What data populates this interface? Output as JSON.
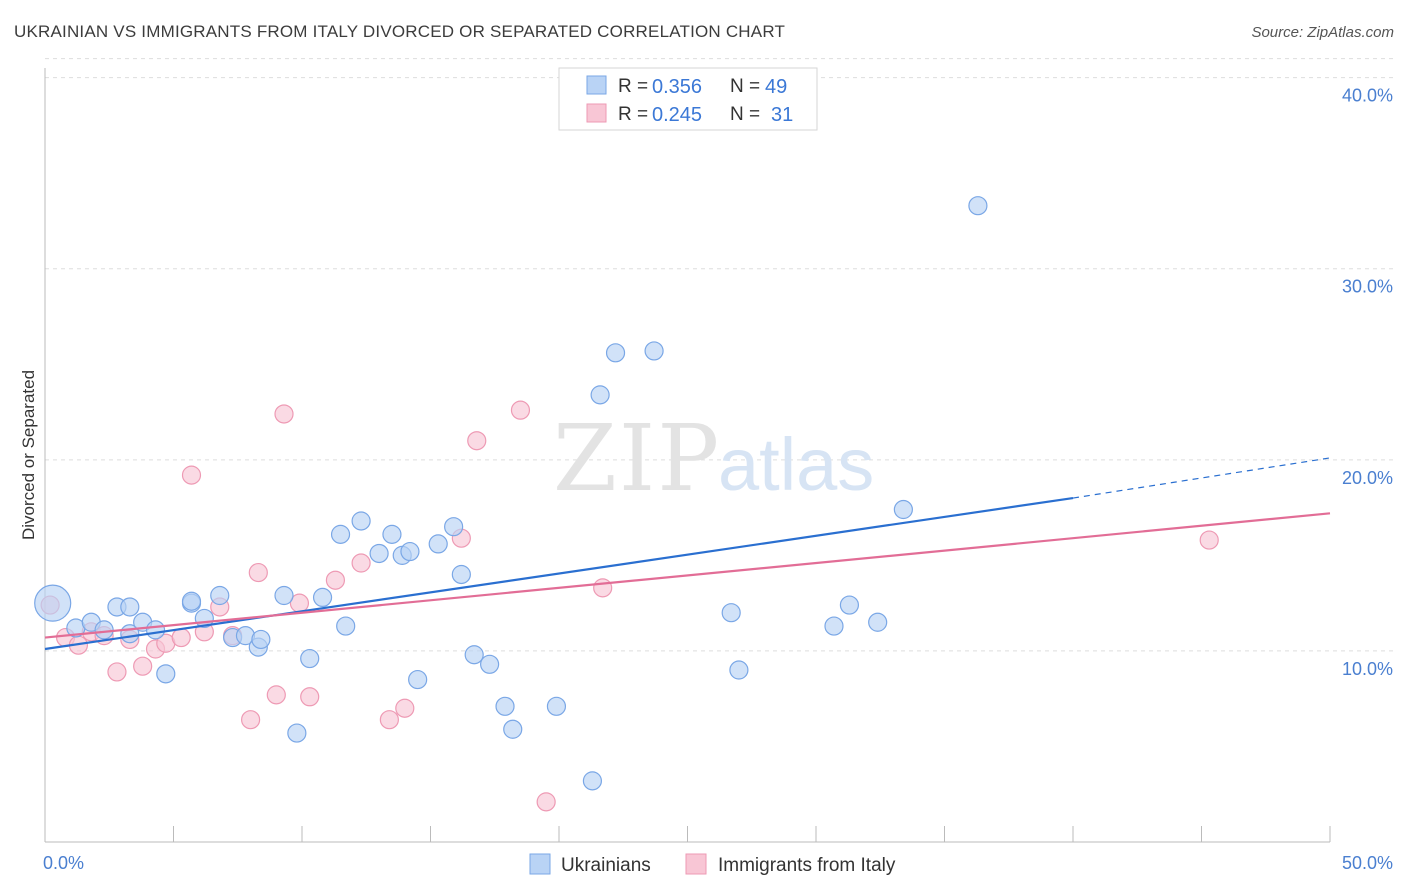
{
  "title": "UKRAINIAN VS IMMIGRANTS FROM ITALY DIVORCED OR SEPARATED CORRELATION CHART",
  "source": "Source: ZipAtlas.com",
  "watermark": {
    "zip": "ZIP",
    "atlas": "atlas"
  },
  "colors": {
    "blue_fill": "#b9d3f5",
    "blue_stroke": "#7aa7e6",
    "blue_line": "#2a6fd0",
    "pink_fill": "#f8c6d5",
    "pink_stroke": "#ee9ab4",
    "pink_line": "#e26d96",
    "tick_text": "#4a7fd0",
    "grid": "#dddddd"
  },
  "legend": {
    "rows": [
      {
        "r_label": "R = ",
        "r_value": "0.356",
        "n_label": "N = ",
        "n_value": "49"
      },
      {
        "r_label": "R = ",
        "r_value": "0.245",
        "n_label": "N = ",
        "n_value": "31"
      }
    ]
  },
  "bottom_legend": [
    "Ukrainians",
    "Immigrants from Italy"
  ],
  "chart_data": {
    "type": "scatter",
    "title": "UKRAINIAN VS IMMIGRANTS FROM ITALY DIVORCED OR SEPARATED CORRELATION CHART",
    "xlabel": "",
    "ylabel": "Divorced or Separated",
    "xlim": [
      0,
      50
    ],
    "ylim": [
      0,
      41.5
    ],
    "x_tick_labels": [
      "0.0%",
      "50.0%"
    ],
    "y_ticks": [
      10,
      20,
      30,
      40
    ],
    "y_tick_labels": [
      "10.0%",
      "20.0%",
      "30.0%",
      "40.0%"
    ],
    "grid": true,
    "legend_position": "top-center",
    "series": [
      {
        "name": "Ukrainians",
        "r": 0.356,
        "n": 49,
        "trend": {
          "x0": 0,
          "y0": 10.1,
          "x1": 40,
          "y1": 18.0,
          "dashed_to_x": 50,
          "dashed_to_y": 20.1
        },
        "points": [
          [
            0.3,
            12.5
          ],
          [
            1.2,
            11.2
          ],
          [
            1.8,
            11.5
          ],
          [
            2.3,
            11.1
          ],
          [
            2.8,
            12.3
          ],
          [
            3.3,
            12.3
          ],
          [
            3.3,
            10.9
          ],
          [
            3.8,
            11.5
          ],
          [
            4.3,
            11.1
          ],
          [
            4.7,
            8.8
          ],
          [
            5.7,
            12.5
          ],
          [
            5.7,
            12.6
          ],
          [
            6.2,
            11.7
          ],
          [
            6.8,
            12.9
          ],
          [
            7.3,
            10.7
          ],
          [
            7.8,
            10.8
          ],
          [
            8.3,
            10.2
          ],
          [
            8.4,
            10.6
          ],
          [
            9.3,
            12.9
          ],
          [
            9.8,
            5.7
          ],
          [
            10.3,
            9.6
          ],
          [
            10.8,
            12.8
          ],
          [
            11.5,
            16.1
          ],
          [
            11.7,
            11.3
          ],
          [
            12.3,
            16.8
          ],
          [
            13.0,
            15.1
          ],
          [
            13.5,
            16.1
          ],
          [
            13.9,
            15.0
          ],
          [
            14.2,
            15.2
          ],
          [
            14.5,
            8.5
          ],
          [
            15.3,
            15.6
          ],
          [
            15.9,
            16.5
          ],
          [
            16.2,
            14.0
          ],
          [
            16.7,
            9.8
          ],
          [
            17.3,
            9.3
          ],
          [
            17.9,
            7.1
          ],
          [
            18.2,
            5.9
          ],
          [
            19.9,
            7.1
          ],
          [
            21.3,
            3.2
          ],
          [
            21.6,
            23.4
          ],
          [
            22.2,
            25.6
          ],
          [
            23.7,
            25.7
          ],
          [
            26.7,
            12.0
          ],
          [
            27.0,
            9.0
          ],
          [
            30.7,
            11.3
          ],
          [
            31.3,
            12.4
          ],
          [
            32.4,
            11.5
          ],
          [
            33.4,
            17.4
          ],
          [
            36.3,
            33.3
          ]
        ]
      },
      {
        "name": "Immigrants from Italy",
        "r": 0.245,
        "n": 31,
        "trend": {
          "x0": 0,
          "y0": 10.7,
          "x1": 50,
          "y1": 17.2
        },
        "points": [
          [
            0.2,
            12.4
          ],
          [
            0.8,
            10.7
          ],
          [
            1.3,
            10.3
          ],
          [
            1.8,
            11.0
          ],
          [
            2.3,
            10.8
          ],
          [
            2.8,
            8.9
          ],
          [
            3.3,
            10.6
          ],
          [
            3.8,
            9.2
          ],
          [
            4.3,
            10.1
          ],
          [
            4.7,
            10.4
          ],
          [
            5.3,
            10.7
          ],
          [
            5.7,
            19.2
          ],
          [
            6.2,
            11.0
          ],
          [
            6.8,
            12.3
          ],
          [
            7.3,
            10.8
          ],
          [
            8.0,
            6.4
          ],
          [
            8.3,
            14.1
          ],
          [
            9.0,
            7.7
          ],
          [
            9.3,
            22.4
          ],
          [
            9.9,
            12.5
          ],
          [
            10.3,
            7.6
          ],
          [
            11.3,
            13.7
          ],
          [
            12.3,
            14.6
          ],
          [
            13.4,
            6.4
          ],
          [
            14.0,
            7.0
          ],
          [
            16.2,
            15.9
          ],
          [
            16.8,
            21.0
          ],
          [
            18.5,
            22.6
          ],
          [
            19.5,
            2.1
          ],
          [
            21.7,
            13.3
          ],
          [
            45.3,
            15.8
          ]
        ]
      }
    ]
  }
}
